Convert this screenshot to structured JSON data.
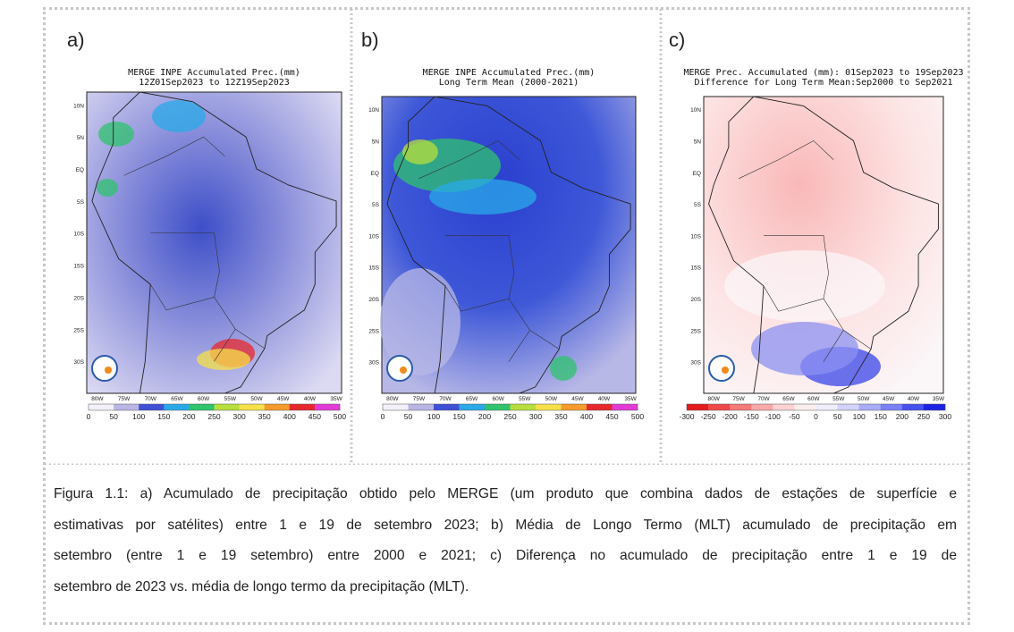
{
  "figure": {
    "lat_labels": [
      "10N",
      "5N",
      "EQ",
      "5S",
      "10S",
      "15S",
      "20S",
      "25S",
      "30S"
    ],
    "lon_labels": [
      "80W",
      "75W",
      "70W",
      "65W",
      "60W",
      "55W",
      "50W",
      "45W",
      "40W",
      "35W"
    ],
    "panels": [
      {
        "label": "a)",
        "title": [
          "MERGE INPE Accumulated Prec.(mm)",
          "12Z01Sep2023 to 12Z19Sep2023"
        ],
        "colorbar": {
          "ticks": [
            0,
            50,
            100,
            150,
            200,
            250,
            300,
            350,
            400,
            450,
            500
          ],
          "colors": [
            "#f4f0fa",
            "#b9b6e6",
            "#3f4fd6",
            "#2aa9e8",
            "#2fc36d",
            "#b7de3c",
            "#f5e04a",
            "#f59a2c",
            "#e8282c",
            "#e23ad6"
          ]
        }
      },
      {
        "label": "b)",
        "title": [
          "MERGE INPE Accumulated Prec.(mm)",
          "Long Term Mean (2000-2021)"
        ],
        "colorbar": {
          "ticks": [
            0,
            50,
            100,
            150,
            200,
            250,
            300,
            350,
            400,
            450,
            500
          ],
          "colors": [
            "#f4f0fa",
            "#b9b6e6",
            "#3f4fd6",
            "#2aa9e8",
            "#2fc36d",
            "#b7de3c",
            "#f5e04a",
            "#f59a2c",
            "#e8282c",
            "#e23ad6"
          ]
        }
      },
      {
        "label": "c)",
        "title": [
          "MERGE Prec. Accumulated (mm): 01Sep2023 to 19Sep2023",
          "Difference for Long Term Mean:Sep2000 to Sep2021"
        ],
        "colorbar": {
          "ticks": [
            -300,
            -250,
            -200,
            -150,
            -100,
            -50,
            0,
            50,
            100,
            150,
            200,
            250,
            300
          ],
          "colors": [
            "#e31a1c",
            "#f04848",
            "#f57a7a",
            "#f9a8a8",
            "#fcd2d2",
            "#fdeeee",
            "#eeeefd",
            "#d2d4fc",
            "#a8acf9",
            "#7a80f5",
            "#4850f0",
            "#1c22e3"
          ]
        }
      }
    ],
    "caption": [
      "Figura 1.1: a) Acumulado de precipitação obtido pelo MERGE (um produto que combina dados de estações de superfície e",
      "estimativas por satélites) entre 1 e 19 de setembro 2023; b) Média de Longo Termo (MLT) acumulado de precipitação em",
      "setembro (entre  1 e 19  setembro) entre 2000 e 2021; c) Diferença no acumulado de precipitação entre 1 e 19 de",
      "setembro de 2023 vs. média de longo termo da precipitação (MLT)."
    ]
  }
}
